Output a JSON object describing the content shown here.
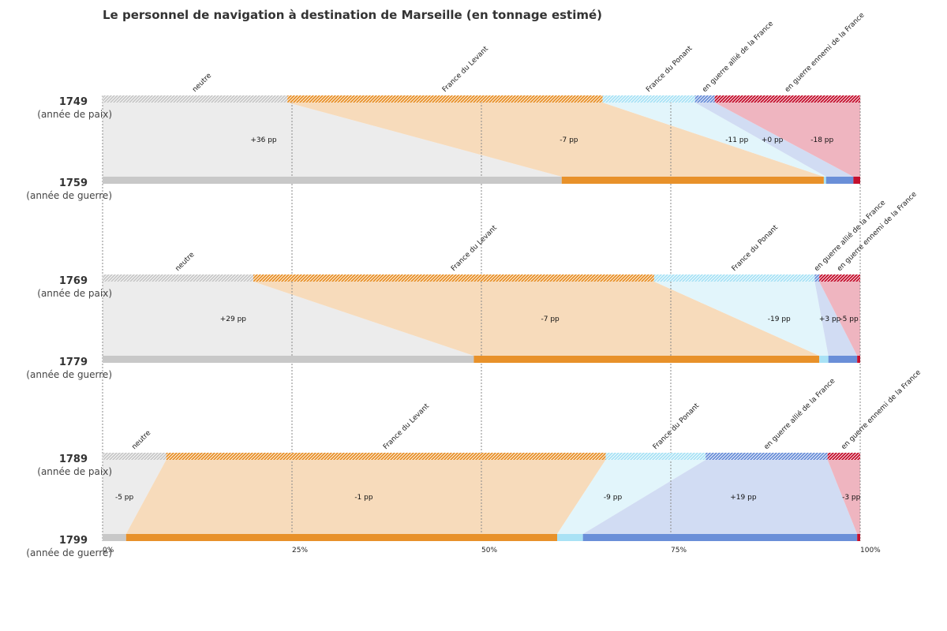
{
  "title": "Le personnel de navigation à destination de Marseille (en tonnage estimé)",
  "chart_data": {
    "type": "bar",
    "categories": [
      "neutre",
      "France du Levant",
      "France du Ponant",
      "en guerre allié de la France",
      "en guerre ennemi de la France"
    ],
    "colors": [
      "#c8c8c8",
      "#e8912a",
      "#a9e2f5",
      "#6a8fd8",
      "#c4102e"
    ],
    "band_colors": [
      "#ececec",
      "#f7dbbb",
      "#e2f5fb",
      "#d1dcf3",
      "#efb5c0"
    ],
    "xticks": [
      "0%",
      "25%",
      "50%",
      "75%",
      "100%"
    ],
    "xlim": [
      0,
      100
    ],
    "comparisons": [
      {
        "top": {
          "year": "1749",
          "label": "(année de paix)",
          "shares": [
            24.4,
            41.6,
            12.2,
            2.6,
            19.2
          ]
        },
        "bottom": {
          "year": "1759",
          "label": "(année de guerre)",
          "shares": [
            60.6,
            34.6,
            0.3,
            3.6,
            0.9
          ]
        },
        "deltas": [
          "+36 pp",
          "-7 pp",
          "-11 pp",
          "+0 pp",
          "-18 pp"
        ]
      },
      {
        "top": {
          "year": "1769",
          "label": "(année de paix)",
          "shares": [
            19.9,
            52.9,
            21.2,
            0.6,
            5.4
          ]
        },
        "bottom": {
          "year": "1779",
          "label": "(année de guerre)",
          "shares": [
            49.0,
            45.6,
            1.2,
            3.8,
            0.4
          ]
        },
        "deltas": [
          "+29 pp",
          "-7 pp",
          "-19 pp",
          "+3 pp",
          "-5 pp"
        ]
      },
      {
        "top": {
          "year": "1789",
          "label": "(année de paix)",
          "shares": [
            8.4,
            58.0,
            13.2,
            16.1,
            4.3
          ]
        },
        "bottom": {
          "year": "1799",
          "label": "(année de guerre)",
          "shares": [
            3.1,
            56.9,
            3.4,
            36.2,
            0.4
          ]
        },
        "deltas": [
          "-5 pp",
          "-1 pp",
          "-9 pp",
          "+19 pp",
          "-3 pp"
        ]
      }
    ]
  }
}
